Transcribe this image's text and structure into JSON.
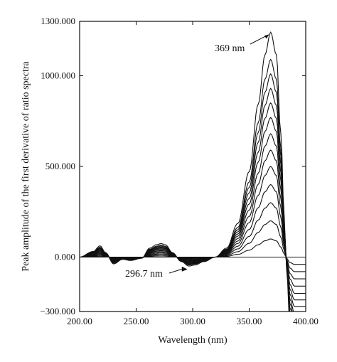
{
  "chart_data": {
    "type": "line",
    "title": "",
    "xlabel": "Wavelength (nm)",
    "ylabel": "Peak amplitude of the first derivative of ratio spectra",
    "xlim": [
      200,
      400
    ],
    "ylim": [
      -300,
      1300
    ],
    "x_ticks": [
      200,
      250,
      300,
      350,
      400
    ],
    "x_tick_labels": [
      "200.00",
      "250.00",
      "300.00",
      "350.00",
      "400.00"
    ],
    "y_ticks": [
      -300,
      0,
      500,
      1000,
      1300
    ],
    "y_tick_labels": [
      "−300.000",
      "0.000",
      "500.000",
      "1000.000",
      "1300.000"
    ],
    "zero_line": true,
    "series_count": 13,
    "series_note": "13 concentration levels; each curve scales the same first-derivative ratio spectrum",
    "peak_amplitudes_at_369nm": [
      100,
      200,
      300,
      400,
      500,
      590,
      680,
      770,
      850,
      930,
      1010,
      1090,
      1240
    ],
    "base_profile": {
      "x": [
        200,
        212,
        218,
        223,
        230,
        238,
        245,
        255,
        262,
        268,
        272,
        276,
        282,
        290,
        296.7,
        302,
        310,
        320,
        330,
        340,
        350,
        358,
        364,
        369,
        374,
        378,
        381,
        383,
        386,
        390,
        400
      ],
      "y_normalized": [
        0,
        0.025,
        0.05,
        0.02,
        -0.03,
        -0.01,
        -0.015,
        -0.005,
        0.04,
        0.055,
        0.06,
        0.055,
        0.02,
        -0.02,
        -0.04,
        -0.035,
        -0.02,
        0.0,
        0.04,
        0.15,
        0.38,
        0.68,
        0.9,
        1.0,
        0.9,
        0.55,
        0.18,
        -0.05,
        -0.3,
        -0.4,
        -0.4
      ]
    },
    "annotations": [
      {
        "text": "369 nm",
        "x": 369,
        "y": 1240
      },
      {
        "text": "296.7 nm",
        "x": 296.7,
        "y": -60
      }
    ]
  }
}
